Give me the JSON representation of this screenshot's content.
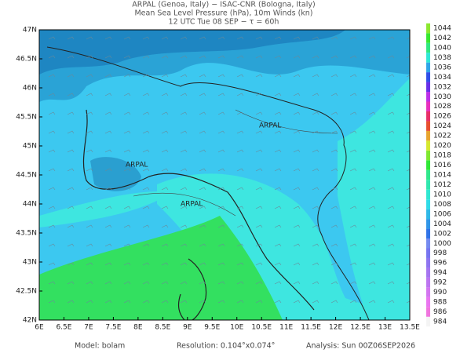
{
  "header": {
    "lines": [
      "ARPAL (Genoa, Italy)  −  ISAC-CNR (Bologna, Italy)",
      "Mean Sea Level Pressure (hPa), 10m Winds (kn)",
      "12 UTC Tue 08 SEP  −  τ = 60h"
    ]
  },
  "map": {
    "lon_labels": [
      "6E",
      "6.5E",
      "7E",
      "7.5E",
      "8E",
      "8.5E",
      "9E",
      "9.5E",
      "10E",
      "10.5E",
      "11E",
      "11.5E",
      "12E",
      "12.5E",
      "13E",
      "13.5E"
    ],
    "lat_labels": [
      "42N",
      "42.5N",
      "43N",
      "43.5N",
      "44N",
      "44.5N",
      "45N",
      "45.5N",
      "46N",
      "46.5N",
      "47N"
    ],
    "watermark": "ARPAL"
  },
  "colorbar": {
    "levels": [
      984,
      986,
      988,
      990,
      992,
      994,
      996,
      998,
      1000,
      1002,
      1004,
      1006,
      1008,
      1010,
      1012,
      1014,
      1016,
      1018,
      1020,
      1022,
      1024,
      1026,
      1028,
      1030,
      1032,
      1034,
      1036,
      1038,
      1040,
      1042,
      1044
    ]
  },
  "footer": {
    "model": "Model: bolam",
    "resolution": "Resolution: 0.104°x0.074°",
    "analysis": "Analysis: Sun 00Z06SEP2026"
  }
}
